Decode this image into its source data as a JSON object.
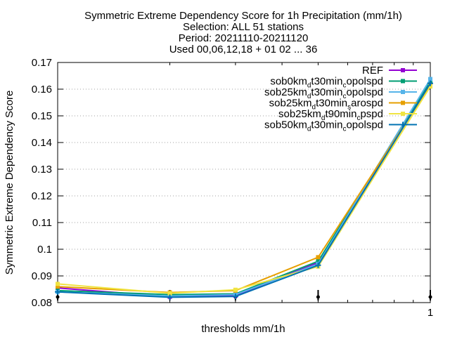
{
  "chart_data": {
    "type": "line",
    "title_lines": [
      "Symmetric Extreme Dependency Score  for 1h Precipitation (mm/1h)",
      "Selection: ALL     51 stations",
      "Period: 20211110-20211120",
      "Used 00,06,12,18 + 01 02 ... 36"
    ],
    "xlabel": "thresholds mm/1h",
    "ylabel": "Symmetric Extreme Dependency Score",
    "x_scale": "log",
    "xlim": [
      0.1,
      1
    ],
    "ylim": [
      0.08,
      0.17
    ],
    "yticks": [
      "0.08",
      "0.09",
      "0.1",
      "0.11",
      "0.12",
      "0.13",
      "0.14",
      "0.15",
      "0.16",
      "0.17"
    ],
    "xtick_labels": [
      {
        "x": 1,
        "label": "1"
      }
    ],
    "x_data": [
      0.1,
      0.2,
      0.3,
      0.5,
      1.0
    ],
    "grid": true,
    "legend_position": "top-right",
    "series": [
      {
        "name_parts": [
          [
            "REF",
            ""
          ]
        ],
        "color": "#9400d3",
        "marker": "square",
        "values": [
          0.0855,
          0.0822,
          0.0826,
          0.095,
          0.1625
        ]
      },
      {
        "name_parts": [
          [
            "sob0km",
            ""
          ],
          [
            "d",
            "sub"
          ],
          [
            "t30min",
            ""
          ],
          [
            "c",
            "sub"
          ],
          [
            "opolspd",
            ""
          ]
        ],
        "color": "#009e73",
        "marker": "square",
        "values": [
          0.0845,
          0.083,
          0.0833,
          0.0955,
          0.163
        ]
      },
      {
        "name_parts": [
          [
            "sob25km",
            ""
          ],
          [
            "d",
            "sub"
          ],
          [
            "t30min",
            ""
          ],
          [
            "c",
            "sub"
          ],
          [
            "opolspd",
            ""
          ]
        ],
        "color": "#56b4e9",
        "marker": "square",
        "values": [
          0.084,
          0.0825,
          0.083,
          0.0945,
          0.1638
        ]
      },
      {
        "name_parts": [
          [
            "sob25km",
            ""
          ],
          [
            "d",
            "sub"
          ],
          [
            "t30min",
            ""
          ],
          [
            "s",
            "sub"
          ],
          [
            "arospd",
            ""
          ]
        ],
        "color": "#e69f00",
        "marker": "square",
        "values": [
          0.086,
          0.0838,
          0.0845,
          0.097,
          0.1615
        ]
      },
      {
        "name_parts": [
          [
            "sob25km",
            ""
          ],
          [
            "d",
            "sub"
          ],
          [
            "t90min",
            ""
          ],
          [
            "c",
            "sub"
          ],
          [
            "pspd",
            ""
          ]
        ],
        "color": "#f0e442",
        "marker": "square",
        "values": [
          0.087,
          0.0835,
          0.0848,
          0.0935,
          0.161
        ]
      },
      {
        "name_parts": [
          [
            "sob50km",
            ""
          ],
          [
            "d",
            "sub"
          ],
          [
            "t30min",
            ""
          ],
          [
            "c",
            "sub"
          ],
          [
            "opolspd",
            ""
          ]
        ],
        "color": "#0072b2",
        "marker": "cross",
        "values": [
          0.084,
          0.082,
          0.0823,
          0.094,
          0.1622
        ]
      }
    ]
  }
}
